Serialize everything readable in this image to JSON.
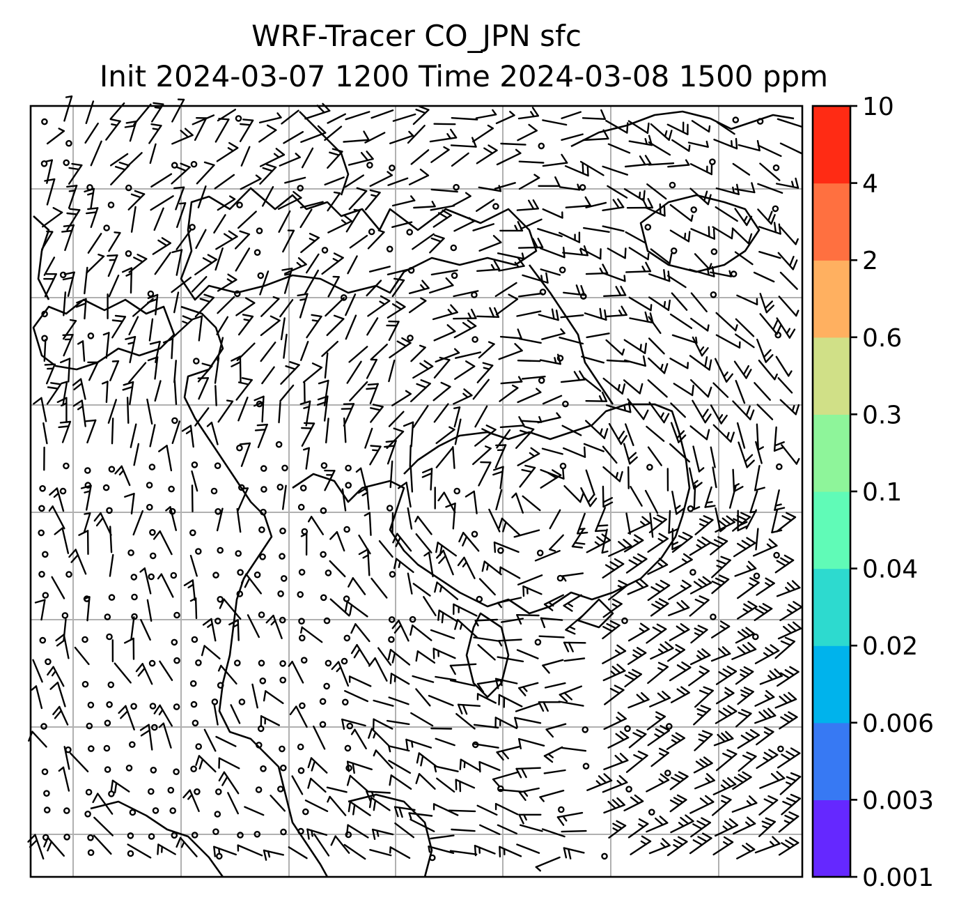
{
  "title": {
    "line1": "WRF-Tracer CO_JPN sfc",
    "line2": "Init 2024-03-07 1200 Time 2024-03-08 1500 ppm"
  },
  "colorbar": {
    "levels": [
      "0.001",
      "0.003",
      "0.006",
      "0.02",
      "0.04",
      "0.1",
      "0.3",
      "0.6",
      "2",
      "4",
      "10"
    ],
    "colors": [
      "#6528ff",
      "#3779f3",
      "#00b3ec",
      "#2ddacf",
      "#60fbb7",
      "#8ef59a",
      "#d0e087",
      "#ffb060",
      "#ff7040",
      "#ff2b14"
    ]
  },
  "map": {
    "grid": "on",
    "gridline_color": "#b0b0b0",
    "wind_barbs": "on",
    "coastlines": "on"
  }
}
